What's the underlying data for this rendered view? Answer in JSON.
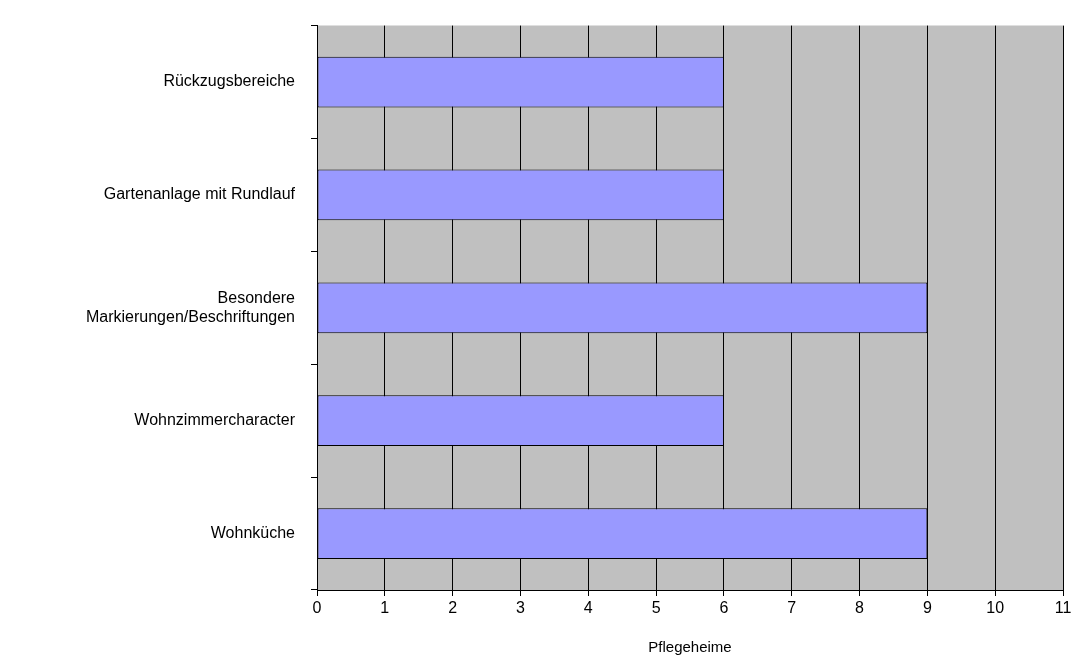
{
  "chart_data": {
    "type": "bar",
    "orientation": "horizontal",
    "xlabel": "Pflegeheime",
    "categories": [
      "Rückzugsbereiche",
      "Gartenanlage mit Rundlauf",
      "Besondere Markierungen/Beschriftungen",
      "Wohnzimmercharacter",
      "Wohnküche"
    ],
    "values": [
      6,
      6,
      9,
      6,
      9
    ],
    "color": "#9999ff",
    "xlim": [
      0,
      11
    ],
    "xticks": [
      0,
      1,
      2,
      3,
      4,
      5,
      6,
      7,
      8,
      9,
      10,
      11
    ],
    "grid": "x",
    "legend": false
  }
}
